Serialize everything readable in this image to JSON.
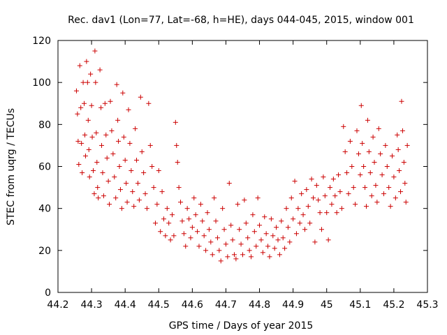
{
  "chart_data": {
    "type": "scatter",
    "title": "Rec. dav1 (Lon=77, Lat=-68, h=HE), days 044-045, 2015, window 001",
    "xlabel": "GPS time / Days of year 2015",
    "ylabel": "STEC from uqrg / TECUs",
    "xlim": [
      44.2,
      45.3
    ],
    "ylim": [
      0,
      120
    ],
    "xticks": [
      "44.2",
      "44.3",
      "44.4",
      "44.5",
      "44.6",
      "44.7",
      "44.8",
      "44.9",
      "45",
      "45.1",
      "45.2",
      "45.3"
    ],
    "yticks": [
      "0",
      "20",
      "40",
      "60",
      "80",
      "100",
      "120"
    ],
    "grid": false,
    "legend": "none",
    "marker_color": "#cc0000",
    "marker": "plus",
    "points": [
      [
        44.255,
        96
      ],
      [
        44.258,
        85
      ],
      [
        44.26,
        72
      ],
      [
        44.262,
        61
      ],
      [
        44.265,
        108
      ],
      [
        44.268,
        88
      ],
      [
        44.27,
        71
      ],
      [
        44.272,
        57
      ],
      [
        44.275,
        100
      ],
      [
        44.278,
        90
      ],
      [
        44.28,
        75
      ],
      [
        44.282,
        65
      ],
      [
        44.285,
        110
      ],
      [
        44.288,
        100
      ],
      [
        44.29,
        82
      ],
      [
        44.292,
        68
      ],
      [
        44.294,
        55
      ],
      [
        44.297,
        104
      ],
      [
        44.3,
        89
      ],
      [
        44.302,
        74
      ],
      [
        44.305,
        58
      ],
      [
        44.308,
        47
      ],
      [
        44.31,
        115
      ],
      [
        44.312,
        100
      ],
      [
        44.314,
        76
      ],
      [
        44.316,
        62
      ],
      [
        44.318,
        50
      ],
      [
        44.32,
        45
      ],
      [
        44.325,
        106
      ],
      [
        44.328,
        88
      ],
      [
        44.33,
        70
      ],
      [
        44.333,
        57
      ],
      [
        44.336,
        46
      ],
      [
        44.34,
        90
      ],
      [
        44.343,
        75
      ],
      [
        44.346,
        64
      ],
      [
        44.35,
        53
      ],
      [
        44.353,
        42
      ],
      [
        44.356,
        91
      ],
      [
        44.36,
        77
      ],
      [
        44.364,
        66
      ],
      [
        44.368,
        55
      ],
      [
        44.372,
        45
      ],
      [
        44.375,
        99
      ],
      [
        44.378,
        82
      ],
      [
        44.38,
        72
      ],
      [
        44.383,
        60
      ],
      [
        44.386,
        49
      ],
      [
        44.39,
        40
      ],
      [
        44.393,
        95
      ],
      [
        44.396,
        74
      ],
      [
        44.4,
        63
      ],
      [
        44.403,
        52
      ],
      [
        44.406,
        43
      ],
      [
        44.41,
        87
      ],
      [
        44.414,
        71
      ],
      [
        44.418,
        58
      ],
      [
        44.422,
        48
      ],
      [
        44.426,
        41
      ],
      [
        44.43,
        78
      ],
      [
        44.434,
        63
      ],
      [
        44.438,
        52
      ],
      [
        44.442,
        44
      ],
      [
        44.446,
        93
      ],
      [
        44.45,
        67
      ],
      [
        44.455,
        57
      ],
      [
        44.46,
        47
      ],
      [
        44.465,
        40
      ],
      [
        44.47,
        90
      ],
      [
        44.475,
        70
      ],
      [
        44.48,
        60
      ],
      [
        44.485,
        50
      ],
      [
        44.49,
        33
      ],
      [
        44.495,
        42
      ],
      [
        44.5,
        58
      ],
      [
        44.505,
        29
      ],
      [
        44.51,
        48
      ],
      [
        44.515,
        35
      ],
      [
        44.52,
        27
      ],
      [
        44.525,
        40
      ],
      [
        44.53,
        33
      ],
      [
        44.535,
        25
      ],
      [
        44.54,
        37
      ],
      [
        44.545,
        27
      ],
      [
        44.55,
        81
      ],
      [
        44.553,
        70
      ],
      [
        44.556,
        62
      ],
      [
        44.56,
        50
      ],
      [
        44.565,
        43
      ],
      [
        44.57,
        34
      ],
      [
        44.575,
        28
      ],
      [
        44.58,
        22
      ],
      [
        44.585,
        40
      ],
      [
        44.59,
        35
      ],
      [
        44.595,
        26
      ],
      [
        44.6,
        31
      ],
      [
        44.605,
        45
      ],
      [
        44.61,
        37
      ],
      [
        44.615,
        29
      ],
      [
        44.62,
        22
      ],
      [
        44.625,
        42
      ],
      [
        44.63,
        34
      ],
      [
        44.635,
        27
      ],
      [
        44.64,
        20
      ],
      [
        44.645,
        38
      ],
      [
        44.65,
        30
      ],
      [
        44.655,
        24
      ],
      [
        44.66,
        18
      ],
      [
        44.665,
        45
      ],
      [
        44.67,
        34
      ],
      [
        44.675,
        26
      ],
      [
        44.68,
        20
      ],
      [
        44.685,
        15
      ],
      [
        44.69,
        40
      ],
      [
        44.695,
        30
      ],
      [
        44.7,
        23
      ],
      [
        44.705,
        17
      ],
      [
        44.71,
        52
      ],
      [
        44.715,
        32
      ],
      [
        44.72,
        25
      ],
      [
        44.725,
        18
      ],
      [
        44.73,
        16
      ],
      [
        44.735,
        42
      ],
      [
        44.74,
        30
      ],
      [
        44.745,
        23
      ],
      [
        44.75,
        18
      ],
      [
        44.755,
        44
      ],
      [
        44.76,
        33
      ],
      [
        44.765,
        26
      ],
      [
        44.77,
        20
      ],
      [
        44.775,
        17
      ],
      [
        44.78,
        37
      ],
      [
        44.785,
        29
      ],
      [
        44.79,
        22
      ],
      [
        44.795,
        45
      ],
      [
        44.8,
        32
      ],
      [
        44.805,
        25
      ],
      [
        44.81,
        19
      ],
      [
        44.815,
        36
      ],
      [
        44.82,
        28
      ],
      [
        44.825,
        22
      ],
      [
        44.83,
        17
      ],
      [
        44.835,
        35
      ],
      [
        44.84,
        27
      ],
      [
        44.845,
        21
      ],
      [
        44.85,
        31
      ],
      [
        44.855,
        25
      ],
      [
        44.86,
        18
      ],
      [
        44.865,
        34
      ],
      [
        44.87,
        26
      ],
      [
        44.875,
        21
      ],
      [
        44.88,
        40
      ],
      [
        44.885,
        31
      ],
      [
        44.89,
        24
      ],
      [
        44.895,
        45
      ],
      [
        44.9,
        35
      ],
      [
        44.905,
        53
      ],
      [
        44.91,
        28
      ],
      [
        44.915,
        40
      ],
      [
        44.92,
        33
      ],
      [
        44.925,
        47
      ],
      [
        44.93,
        37
      ],
      [
        44.935,
        30
      ],
      [
        44.94,
        49
      ],
      [
        44.945,
        41
      ],
      [
        44.95,
        33
      ],
      [
        44.955,
        54
      ],
      [
        44.96,
        45
      ],
      [
        44.965,
        24
      ],
      [
        44.97,
        51
      ],
      [
        44.975,
        44
      ],
      [
        44.98,
        38
      ],
      [
        44.985,
        30
      ],
      [
        44.99,
        55
      ],
      [
        44.995,
        46
      ],
      [
        45.0,
        38
      ],
      [
        45.005,
        25
      ],
      [
        45.01,
        50
      ],
      [
        45.015,
        42
      ],
      [
        45.02,
        54
      ],
      [
        45.025,
        46
      ],
      [
        45.03,
        38
      ],
      [
        45.035,
        56
      ],
      [
        45.04,
        48
      ],
      [
        45.045,
        40
      ],
      [
        45.05,
        79
      ],
      [
        45.055,
        67
      ],
      [
        45.06,
        57
      ],
      [
        45.065,
        47
      ],
      [
        45.07,
        72
      ],
      [
        45.075,
        60
      ],
      [
        45.08,
        50
      ],
      [
        45.085,
        42
      ],
      [
        45.09,
        77
      ],
      [
        45.095,
        66
      ],
      [
        45.1,
        56
      ],
      [
        45.103,
        89
      ],
      [
        45.106,
        71
      ],
      [
        45.11,
        60
      ],
      [
        45.114,
        50
      ],
      [
        45.118,
        41
      ],
      [
        45.122,
        82
      ],
      [
        45.126,
        67
      ],
      [
        45.13,
        57
      ],
      [
        45.134,
        46
      ],
      [
        45.138,
        74
      ],
      [
        45.142,
        62
      ],
      [
        45.146,
        51
      ],
      [
        45.15,
        43
      ],
      [
        45.155,
        78
      ],
      [
        45.16,
        66
      ],
      [
        45.165,
        56
      ],
      [
        45.17,
        47
      ],
      [
        45.175,
        70
      ],
      [
        45.18,
        60
      ],
      [
        45.185,
        50
      ],
      [
        45.19,
        41
      ],
      [
        45.195,
        65
      ],
      [
        45.2,
        55
      ],
      [
        45.205,
        45
      ],
      [
        45.21,
        75
      ],
      [
        45.213,
        68
      ],
      [
        45.216,
        58
      ],
      [
        45.22,
        48
      ],
      [
        45.223,
        91
      ],
      [
        45.226,
        77
      ],
      [
        45.23,
        62
      ],
      [
        45.233,
        52
      ],
      [
        45.236,
        43
      ],
      [
        45.24,
        70
      ]
    ]
  }
}
